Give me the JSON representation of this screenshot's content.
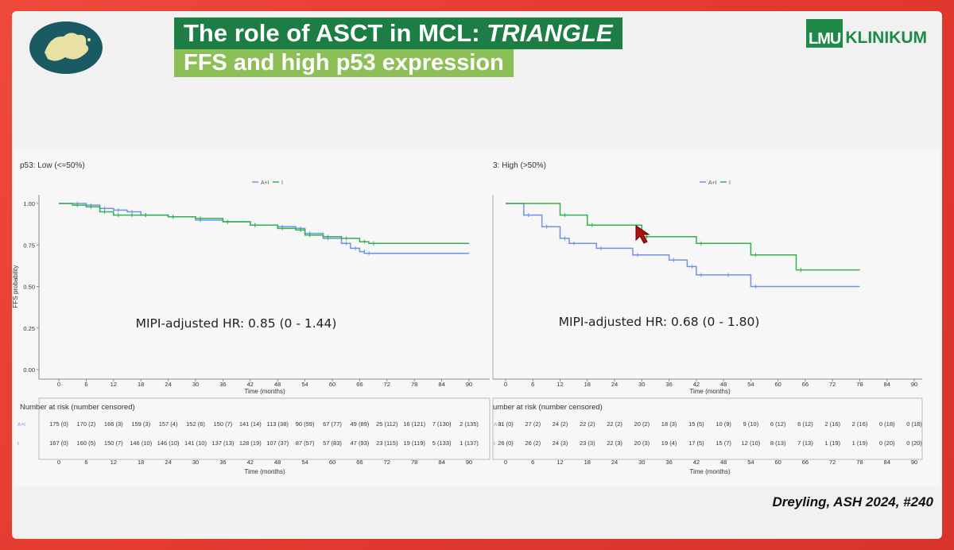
{
  "slide": {
    "title_main": "The role of ASCT in MCL: ",
    "title_italic": "TRIANGLE",
    "subtitle": "FFS and high p53 expression",
    "logo_right_box": "LMU",
    "logo_right_text": "KLINIKUM",
    "citation": "Dreyling, ASH 2024, #240"
  },
  "chart_data": [
    {
      "type": "line",
      "title": "p53: Low (<=50%)",
      "ylabel": "FFS probability",
      "xlabel": "Time (months)",
      "xlim": [
        0,
        90
      ],
      "ylim": [
        0,
        1
      ],
      "x_ticks": [
        0,
        6,
        12,
        18,
        24,
        30,
        36,
        42,
        48,
        54,
        60,
        66,
        72,
        78,
        84,
        90
      ],
      "y_ticks": [
        "0.00",
        "0.25",
        "0.50",
        "0.75",
        "1.00"
      ],
      "legend": [
        "A+I",
        "I"
      ],
      "legend_position": "top-center",
      "annotation": "MIPI-adjusted HR: 0.85 (0 - 1.44)",
      "series": [
        {
          "name": "A+I",
          "color": "#6e93e6",
          "points": [
            [
              0,
              1
            ],
            [
              3,
              1
            ],
            [
              6,
              0.99
            ],
            [
              9,
              0.97
            ],
            [
              12,
              0.96
            ],
            [
              15,
              0.95
            ],
            [
              18,
              0.93
            ],
            [
              24,
              0.92
            ],
            [
              30,
              0.9
            ],
            [
              36,
              0.89
            ],
            [
              42,
              0.87
            ],
            [
              48,
              0.86
            ],
            [
              52,
              0.85
            ],
            [
              54,
              0.82
            ],
            [
              58,
              0.79
            ],
            [
              62,
              0.76
            ],
            [
              64,
              0.73
            ],
            [
              66,
              0.71
            ],
            [
              67,
              0.7
            ],
            [
              90,
              0.7
            ]
          ]
        },
        {
          "name": "I",
          "color": "#2fb34a",
          "points": [
            [
              0,
              1
            ],
            [
              3,
              0.99
            ],
            [
              6,
              0.98
            ],
            [
              9,
              0.95
            ],
            [
              12,
              0.93
            ],
            [
              15,
              0.93
            ],
            [
              18,
              0.93
            ],
            [
              24,
              0.92
            ],
            [
              30,
              0.91
            ],
            [
              36,
              0.89
            ],
            [
              42,
              0.87
            ],
            [
              48,
              0.85
            ],
            [
              52,
              0.84
            ],
            [
              54,
              0.81
            ],
            [
              58,
              0.8
            ],
            [
              62,
              0.79
            ],
            [
              66,
              0.77
            ],
            [
              68,
              0.76
            ],
            [
              90,
              0.76
            ]
          ]
        }
      ],
      "risk_table": {
        "title": "Number at risk (number censored)",
        "xlabel": "Time (months)",
        "rows": [
          {
            "label": "A+I",
            "values": [
              "175 (0)",
              "170 (2)",
              "166 (3)",
              "159 (3)",
              "157 (4)",
              "152 (6)",
              "150 (7)",
              "141 (14)",
              "113 (38)",
              "90 (59)",
              "67 (77)",
              "49 (89)",
              "25 (112)",
              "16 (121)",
              "7 (130)",
              "2 (135)"
            ]
          },
          {
            "label": "I",
            "values": [
              "167 (0)",
              "160 (5)",
              "150 (7)",
              "146 (10)",
              "146 (10)",
              "141 (10)",
              "137 (13)",
              "128 (19)",
              "107 (37)",
              "87 (57)",
              "57 (83)",
              "47 (93)",
              "23 (115)",
              "19 (119)",
              "5 (133)",
              "1 (137)"
            ]
          }
        ]
      }
    },
    {
      "type": "line",
      "title": "3: High (>50%)",
      "xlabel": "Time (months)",
      "xlim": [
        0,
        90
      ],
      "ylim": [
        0,
        1
      ],
      "x_ticks": [
        0,
        6,
        12,
        18,
        24,
        30,
        36,
        42,
        48,
        54,
        60,
        66,
        72,
        78,
        84,
        90
      ],
      "legend": [
        "A+I",
        "I"
      ],
      "legend_position": "top-center",
      "annotation": "MIPI-adjusted HR: 0.68 (0 - 1.80)",
      "series": [
        {
          "name": "A+I",
          "color": "#6e93e6",
          "points": [
            [
              0,
              1
            ],
            [
              4,
              0.93
            ],
            [
              8,
              0.86
            ],
            [
              12,
              0.79
            ],
            [
              14,
              0.76
            ],
            [
              20,
              0.73
            ],
            [
              28,
              0.69
            ],
            [
              36,
              0.66
            ],
            [
              40,
              0.62
            ],
            [
              42,
              0.57
            ],
            [
              48,
              0.57
            ],
            [
              54,
              0.5
            ],
            [
              78,
              0.5
            ]
          ]
        },
        {
          "name": "I",
          "color": "#2fb34a",
          "points": [
            [
              0,
              1
            ],
            [
              12,
              0.93
            ],
            [
              18,
              0.87
            ],
            [
              30,
              0.8
            ],
            [
              42,
              0.76
            ],
            [
              54,
              0.69
            ],
            [
              64,
              0.6
            ],
            [
              78,
              0.6
            ]
          ]
        }
      ],
      "risk_table": {
        "title": "umber at risk (number censored)",
        "xlabel": "Time (months)",
        "rows": [
          {
            "label": "A+I",
            "values": [
              "31 (0)",
              "27 (2)",
              "24 (2)",
              "22 (2)",
              "22 (2)",
              "20 (2)",
              "18 (3)",
              "15 (5)",
              "10 (9)",
              "9 (10)",
              "6 (12)",
              "6 (12)",
              "2 (16)",
              "2 (16)",
              "0 (18)",
              "0 (18)"
            ]
          },
          {
            "label": "I",
            "values": [
              "26 (0)",
              "26 (2)",
              "24 (3)",
              "23 (3)",
              "22 (3)",
              "20 (3)",
              "19 (4)",
              "17 (5)",
              "15 (7)",
              "12 (10)",
              "8 (13)",
              "7 (13)",
              "1 (19)",
              "1 (19)",
              "0 (20)",
              "0 (20)"
            ]
          }
        ]
      }
    }
  ]
}
